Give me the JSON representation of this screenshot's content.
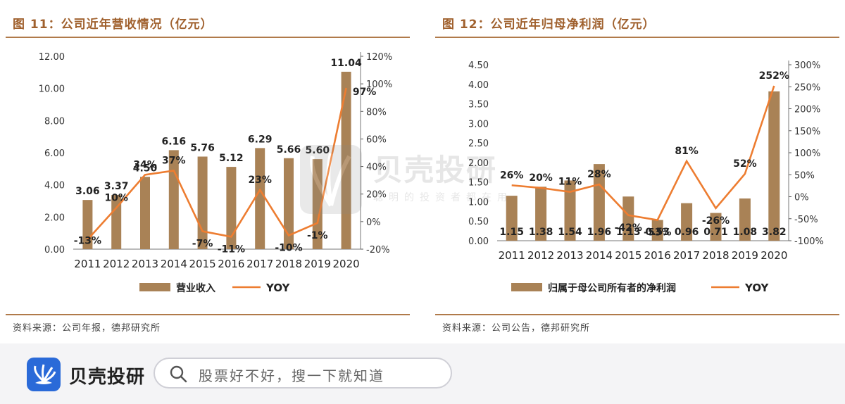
{
  "left": {
    "title": "图 11：公司近年营收情况（亿元）",
    "source": "资料来源：公司年报，德邦研究所"
  },
  "right": {
    "title": "图 12：公司近年归母净利润（亿元）",
    "source": "资料来源：公司公告，德邦研究所"
  },
  "chart_data": [
    {
      "type": "bar",
      "categories": [
        "2011",
        "2012",
        "2013",
        "2014",
        "2015",
        "2016",
        "2017",
        "2018",
        "2019",
        "2020"
      ],
      "series": [
        {
          "name": "营业收入",
          "type": "bar",
          "axis": "left",
          "values": [
            3.06,
            3.37,
            4.5,
            6.16,
            5.76,
            5.12,
            6.29,
            5.66,
            5.6,
            11.04
          ],
          "labels": [
            "3.06",
            "3.37",
            "4.50",
            "6.16",
            "5.76",
            "5.12",
            "6.29",
            "5.66",
            "5.60",
            "11.04"
          ]
        },
        {
          "name": "YOY",
          "type": "line",
          "axis": "right",
          "values": [
            -13,
            10,
            34,
            37,
            -7,
            -11,
            23,
            -10,
            -1,
            97
          ],
          "labels": [
            "-13%",
            "10%",
            "34%",
            "37%",
            "-7%",
            "-11%",
            "23%",
            "-10%",
            "-1%",
            "97%"
          ]
        }
      ],
      "y_left": {
        "min": 0,
        "max": 12,
        "ticks": [
          "0.00",
          "2.00",
          "4.00",
          "6.00",
          "8.00",
          "10.00",
          "12.00"
        ]
      },
      "y_right": {
        "min": -20,
        "max": 120,
        "ticks": [
          "-20%",
          "0%",
          "20%",
          "40%",
          "60%",
          "80%",
          "100%",
          "120%"
        ]
      },
      "colors": {
        "bar": "#a98256",
        "line": "#ed7d31"
      },
      "legend_position": "bottom"
    },
    {
      "type": "bar",
      "categories": [
        "2011",
        "2012",
        "2013",
        "2014",
        "2015",
        "2016",
        "2017",
        "2018",
        "2019",
        "2020"
      ],
      "series": [
        {
          "name": "归属于母公司所有者的净利润",
          "type": "bar",
          "axis": "left",
          "values": [
            1.15,
            1.38,
            1.54,
            1.96,
            1.13,
            0.53,
            0.96,
            0.71,
            1.08,
            3.82
          ],
          "labels": [
            "1.15",
            "1.38",
            "1.54",
            "1.96",
            "1.13",
            "0.53",
            "0.96",
            "0.71",
            "1.08",
            "3.82"
          ]
        },
        {
          "name": "YOY",
          "type": "line",
          "axis": "right",
          "values": [
            26,
            20,
            11,
            28,
            -42,
            -53,
            81,
            -26,
            52,
            252
          ],
          "labels": [
            "26%",
            "20%",
            "11%",
            "28%",
            "-42%",
            "-53%",
            "81%",
            "-26%",
            "52%",
            "252%"
          ]
        }
      ],
      "y_left": {
        "min": 0,
        "max": 4.5,
        "ticks": [
          "0.00",
          "0.50",
          "1.00",
          "1.50",
          "2.00",
          "2.50",
          "3.00",
          "3.50",
          "4.00",
          "4.50"
        ]
      },
      "y_right": {
        "min": -100,
        "max": 300,
        "ticks": [
          "-100%",
          "-50%",
          "0%",
          "50%",
          "100%",
          "150%",
          "200%",
          "250%",
          "300%"
        ]
      },
      "colors": {
        "bar": "#a98256",
        "line": "#ed7d31"
      },
      "legend_position": "bottom"
    }
  ],
  "watermark": {
    "brand": "贝壳投研",
    "tagline": "聪明的投资者都在用"
  },
  "footer": {
    "brand": "贝壳投研",
    "search_placeholder": "股票好不好，搜一下就知道",
    "icons": {
      "logo": "shell-logo-icon",
      "search": "search-icon"
    }
  }
}
